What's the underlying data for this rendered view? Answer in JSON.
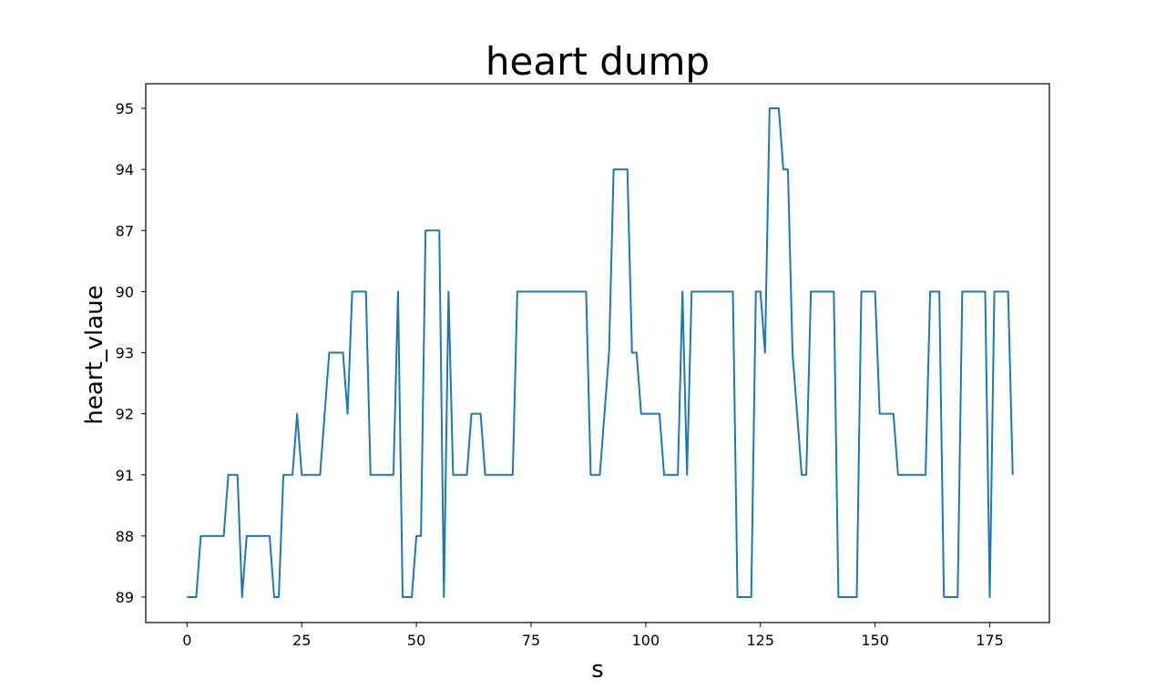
{
  "chart_data": {
    "type": "line",
    "title": "heart dump",
    "xlabel": "s",
    "ylabel": "heart_vlaue",
    "x_ticks": [
      0,
      25,
      50,
      75,
      100,
      125,
      150,
      175
    ],
    "x_tick_labels": [
      "0",
      "25",
      "50",
      "75",
      "100",
      "125",
      "150",
      "175"
    ],
    "y_categories": [
      "89",
      "88",
      "91",
      "92",
      "93",
      "90",
      "87",
      "94",
      "95"
    ],
    "xlim": [
      -9,
      188
    ],
    "grid": false,
    "series": [
      {
        "color": "#1f77b4",
        "values": [
          "89",
          "89",
          "89",
          "88",
          "88",
          "88",
          "88",
          "88",
          "88",
          "91",
          "91",
          "91",
          "89",
          "88",
          "88",
          "88",
          "88",
          "88",
          "88",
          "89",
          "89",
          "91",
          "91",
          "91",
          "92",
          "91",
          "91",
          "91",
          "91",
          "91",
          "92",
          "93",
          "93",
          "93",
          "93",
          "92",
          "90",
          "90",
          "90",
          "90",
          "91",
          "91",
          "91",
          "91",
          "91",
          "91",
          "90",
          "89",
          "89",
          "89",
          "88",
          "88",
          "87",
          "87",
          "87",
          "87",
          "89",
          "90",
          "91",
          "91",
          "91",
          "91",
          "92",
          "92",
          "92",
          "91",
          "91",
          "91",
          "91",
          "91",
          "91",
          "91",
          "90",
          "90",
          "90",
          "90",
          "90",
          "90",
          "90",
          "90",
          "90",
          "90",
          "90",
          "90",
          "90",
          "90",
          "90",
          "90",
          "91",
          "91",
          "91",
          "92",
          "93",
          "94",
          "94",
          "94",
          "94",
          "93",
          "93",
          "92",
          "92",
          "92",
          "92",
          "92",
          "91",
          "91",
          "91",
          "91",
          "90",
          "91",
          "90",
          "90",
          "90",
          "90",
          "90",
          "90",
          "90",
          "90",
          "90",
          "90",
          "89",
          "89",
          "89",
          "89",
          "90",
          "90",
          "93",
          "95",
          "95",
          "95",
          "94",
          "94",
          "93",
          "92",
          "91",
          "91",
          "90",
          "90",
          "90",
          "90",
          "90",
          "90",
          "89",
          "89",
          "89",
          "89",
          "89",
          "90",
          "90",
          "90",
          "90",
          "92",
          "92",
          "92",
          "92",
          "91",
          "91",
          "91",
          "91",
          "91",
          "91",
          "91",
          "90",
          "90",
          "90",
          "89",
          "89",
          "89",
          "89",
          "90",
          "90",
          "90",
          "90",
          "90",
          "90",
          "89",
          "90",
          "90",
          "90",
          "90",
          "91"
        ]
      }
    ]
  }
}
